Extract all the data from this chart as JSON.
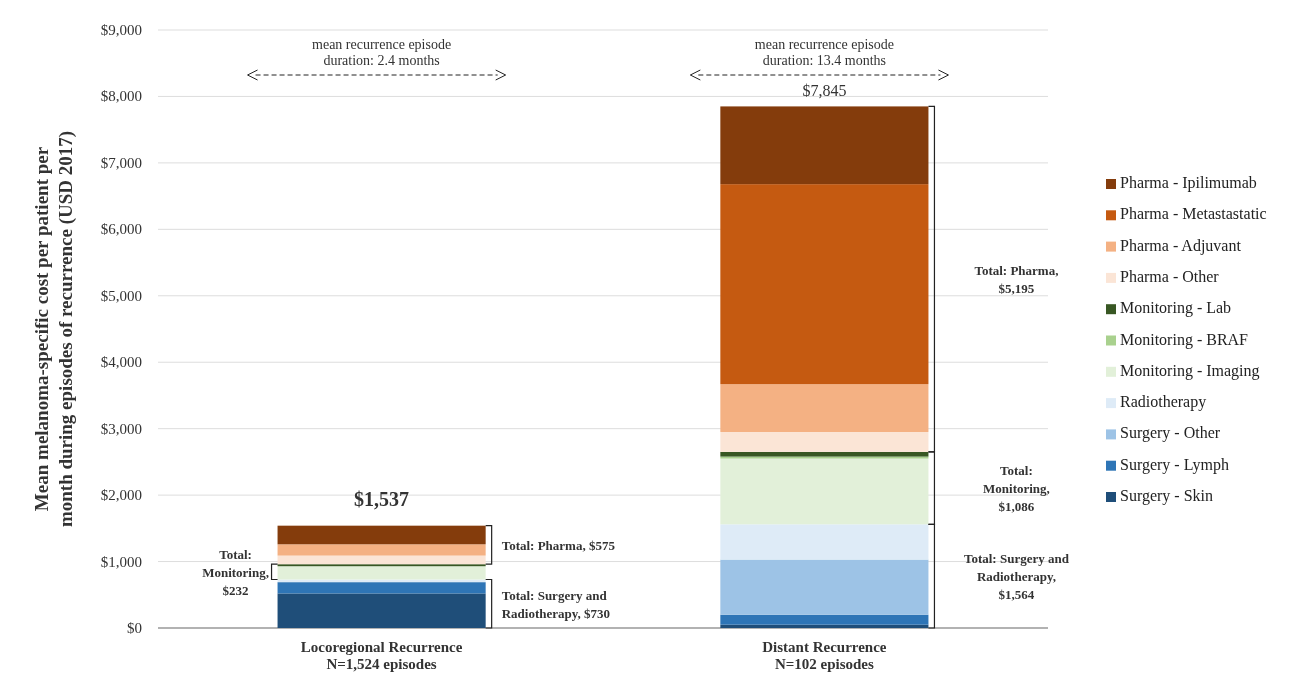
{
  "chart_data": {
    "type": "bar",
    "stacked": true,
    "ylabel": "Mean melanoma-specific cost per patient per\nmonth during episodes of recurrence (USD 2017)",
    "categories": [
      "Locoregional Recurrence\nN=1,524 episodes",
      "Distant Recurrence\nN=102 episodes"
    ],
    "series": [
      {
        "name": "Surgery - Skin",
        "color": "#1f4e79",
        "values": [
          520,
          50
        ]
      },
      {
        "name": "Surgery - Lymph",
        "color": "#2e75b6",
        "values": [
          170,
          150
        ]
      },
      {
        "name": "Surgery - Other",
        "color": "#9dc3e6",
        "values": [
          0,
          830
        ]
      },
      {
        "name": "Radiotherapy",
        "color": "#deebf7",
        "values": [
          40,
          530
        ]
      },
      {
        "name": "Monitoring - Imaging",
        "color": "#e2f0d9",
        "values": [
          200,
          990
        ]
      },
      {
        "name": "Monitoring - BRAF",
        "color": "#a9d18e",
        "values": [
          0,
          30
        ]
      },
      {
        "name": "Monitoring - Lab",
        "color": "#385723",
        "values": [
          30,
          70
        ]
      },
      {
        "name": "Pharma - Other",
        "color": "#fbe5d6",
        "values": [
          130,
          300
        ]
      },
      {
        "name": "Pharma - Adjuvant",
        "color": "#f4b183",
        "values": [
          170,
          720
        ]
      },
      {
        "name": "Pharma - Metastastatic",
        "color": "#c55a11",
        "values": [
          0,
          3010
        ]
      },
      {
        "name": "Pharma - Ipilimumab",
        "color": "#843c0c",
        "values": [
          280,
          1170
        ]
      }
    ],
    "totals": [
      "$1,537",
      "$7,845"
    ],
    "ylim": [
      0,
      9000
    ],
    "yticks": [
      {
        "value": 0,
        "label": "$0"
      },
      {
        "value": 1000,
        "label": "$1,000"
      },
      {
        "value": 2000,
        "label": "$2,000"
      },
      {
        "value": 3000,
        "label": "$3,000"
      },
      {
        "value": 4000,
        "label": "$4,000"
      },
      {
        "value": 5000,
        "label": "$5,000"
      },
      {
        "value": 6000,
        "label": "$6,000"
      },
      {
        "value": 7000,
        "label": "$7,000"
      },
      {
        "value": 8000,
        "label": "$8,000"
      },
      {
        "value": 9000,
        "label": "$9,000"
      }
    ],
    "grid": "y",
    "legend": "right",
    "annotations": [
      "mean recurrence episode\nduration: 2.4 months",
      "mean recurrence episode\nduration: 13.4 months",
      "Total: Surgery and\nRadiotherapy, $730",
      "Total:\nMonitoring,\n$232",
      "Total: Pharma, $575",
      "Total: Surgery and\nRadiotherapy,\n$1,564",
      "Total:\nMonitoring,\n$1,086",
      "Total: Pharma,\n$5,195"
    ]
  }
}
